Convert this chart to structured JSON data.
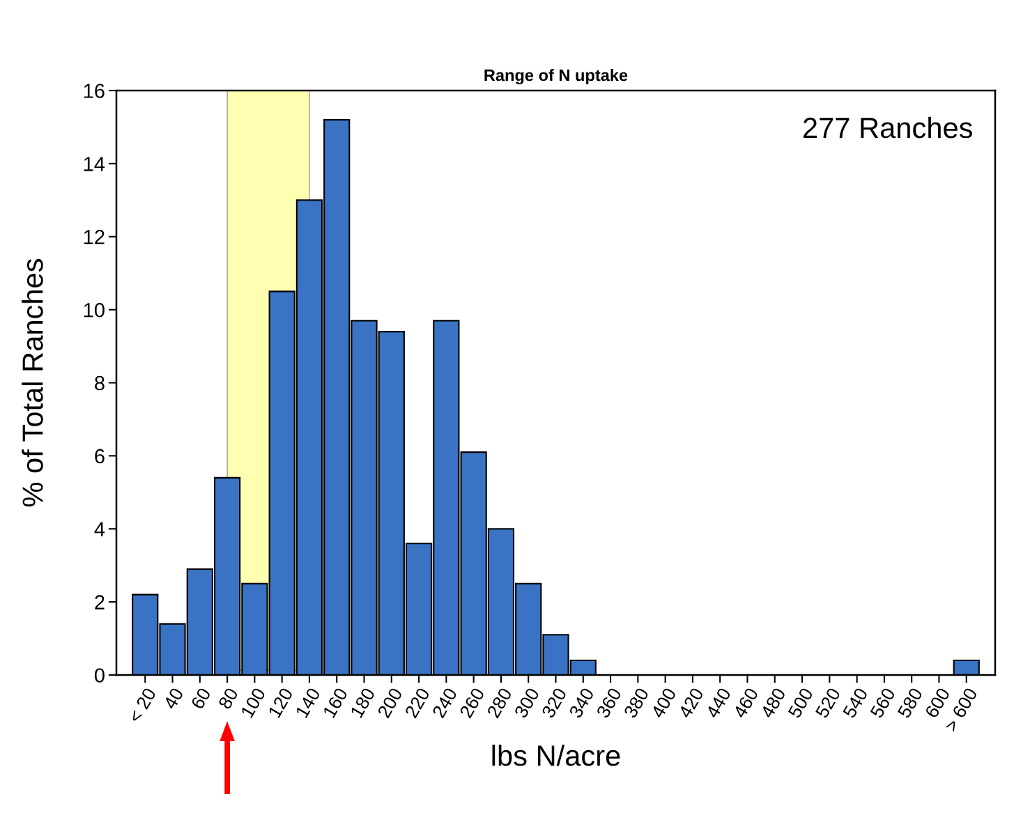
{
  "chart_data": {
    "type": "bar",
    "title": "Range of N uptake",
    "xlabel": "lbs N/acre",
    "ylabel": "% of Total Ranches",
    "categories": [
      "< 20",
      "40",
      "60",
      "80",
      "100",
      "120",
      "140",
      "160",
      "180",
      "200",
      "220",
      "240",
      "260",
      "280",
      "300",
      "320",
      "340",
      "360",
      "380",
      "400",
      "420",
      "440",
      "460",
      "480",
      "500",
      "520",
      "540",
      "560",
      "580",
      "600",
      "> 600"
    ],
    "series": [
      {
        "color": "#3a73c4",
        "values": [
          2.2,
          1.4,
          2.9,
          5.4,
          2.5,
          10.5,
          13,
          15.2,
          9.7,
          9.4,
          3.6,
          9.7,
          6.1,
          4.0,
          2.5,
          1.1,
          0.4,
          0,
          0,
          0,
          0,
          0,
          0,
          0,
          0,
          0,
          0,
          0,
          0,
          0,
          0.4
        ]
      }
    ],
    "ylim": [
      0,
      16
    ],
    "yticks": [
      0,
      2,
      4,
      6,
      8,
      10,
      12,
      14,
      16
    ],
    "grid": false,
    "legend": false,
    "bands": [
      {
        "axis": "x",
        "from": "80",
        "to": "140",
        "color": "#ffff66"
      }
    ],
    "annotations": [
      "277 Ranches"
    ]
  }
}
